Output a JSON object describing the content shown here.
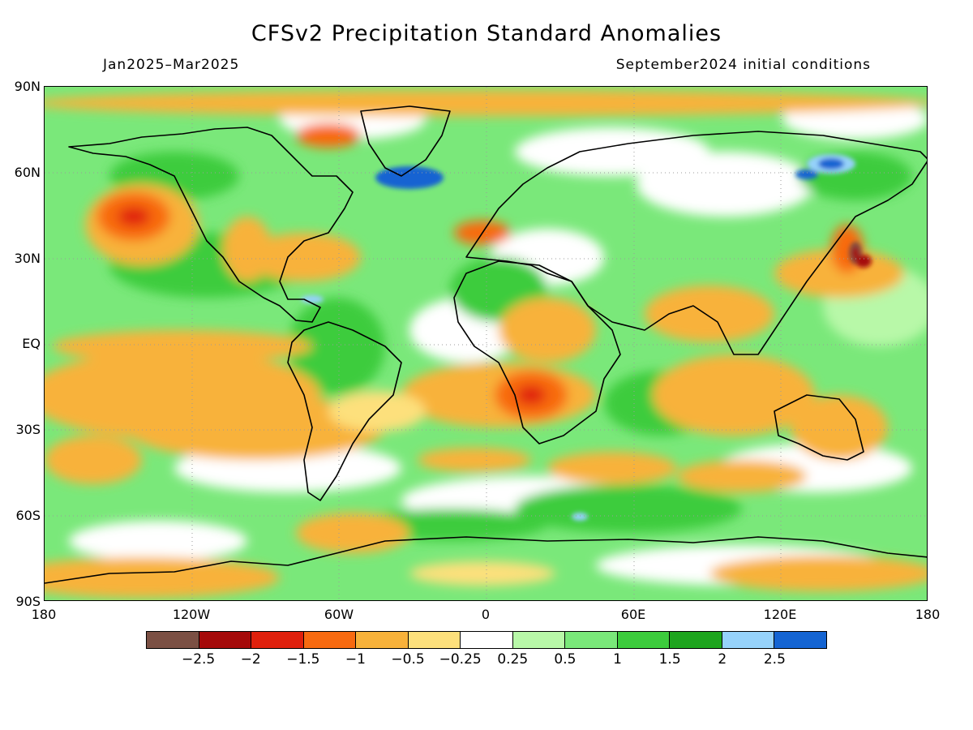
{
  "title": "CFSv2 Precipitation Standard Anomalies",
  "period": "Jan2025–Mar2025",
  "init": "September2024 initial conditions",
  "lat_labels": [
    "90N",
    "60N",
    "30N",
    "EQ",
    "30S",
    "60S",
    "90S"
  ],
  "lon_labels": [
    "180",
    "120W",
    "60W",
    "0",
    "60E",
    "120E",
    "180"
  ],
  "colorbar": {
    "colors": [
      "#7b5044",
      "#a50a0a",
      "#e0200c",
      "#f86a10",
      "#f8b23a",
      "#fde07c",
      "#ffffff",
      "#b8f8a8",
      "#7ae87a",
      "#3ccc3c",
      "#1ea51e",
      "#96d2fa",
      "#1464d2"
    ],
    "labels": [
      "−2.5",
      "−2",
      "−1.5",
      "−1",
      "−0.5",
      "−0.25",
      "0.25",
      "0.5",
      "1",
      "1.5",
      "2",
      "2.5"
    ]
  }
}
